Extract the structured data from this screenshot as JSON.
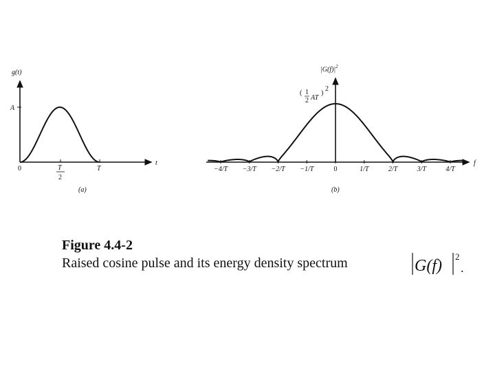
{
  "figure": {
    "panel_a": {
      "ylabel": "g(t)",
      "xlabel": "t",
      "amplitude_label": "A",
      "tick_labels": {
        "zero": "0",
        "half_num": "T",
        "half_den": "2",
        "end": "T"
      },
      "panel_tag": "(a)"
    },
    "panel_b": {
      "ylabel": "|G(f)|",
      "ylabel_exp": "2",
      "xlabel": "f",
      "peak_label_frac_num": "1",
      "peak_label_frac_den": "2",
      "peak_label_rest": "AT",
      "peak_label_exp": "2",
      "tick_labels": [
        "−4/T",
        "−3/T",
        "−2/T",
        "−1/T",
        "0",
        "1/T",
        "2/T",
        "3/T",
        "4/T"
      ],
      "panel_tag": "(b)"
    }
  },
  "caption": {
    "title": "Figure 4.4-2",
    "body": "Raised cosine pulse and its energy density spectrum",
    "formula_main": "G(f)",
    "formula_exp": "2",
    "formula_tail": "."
  }
}
